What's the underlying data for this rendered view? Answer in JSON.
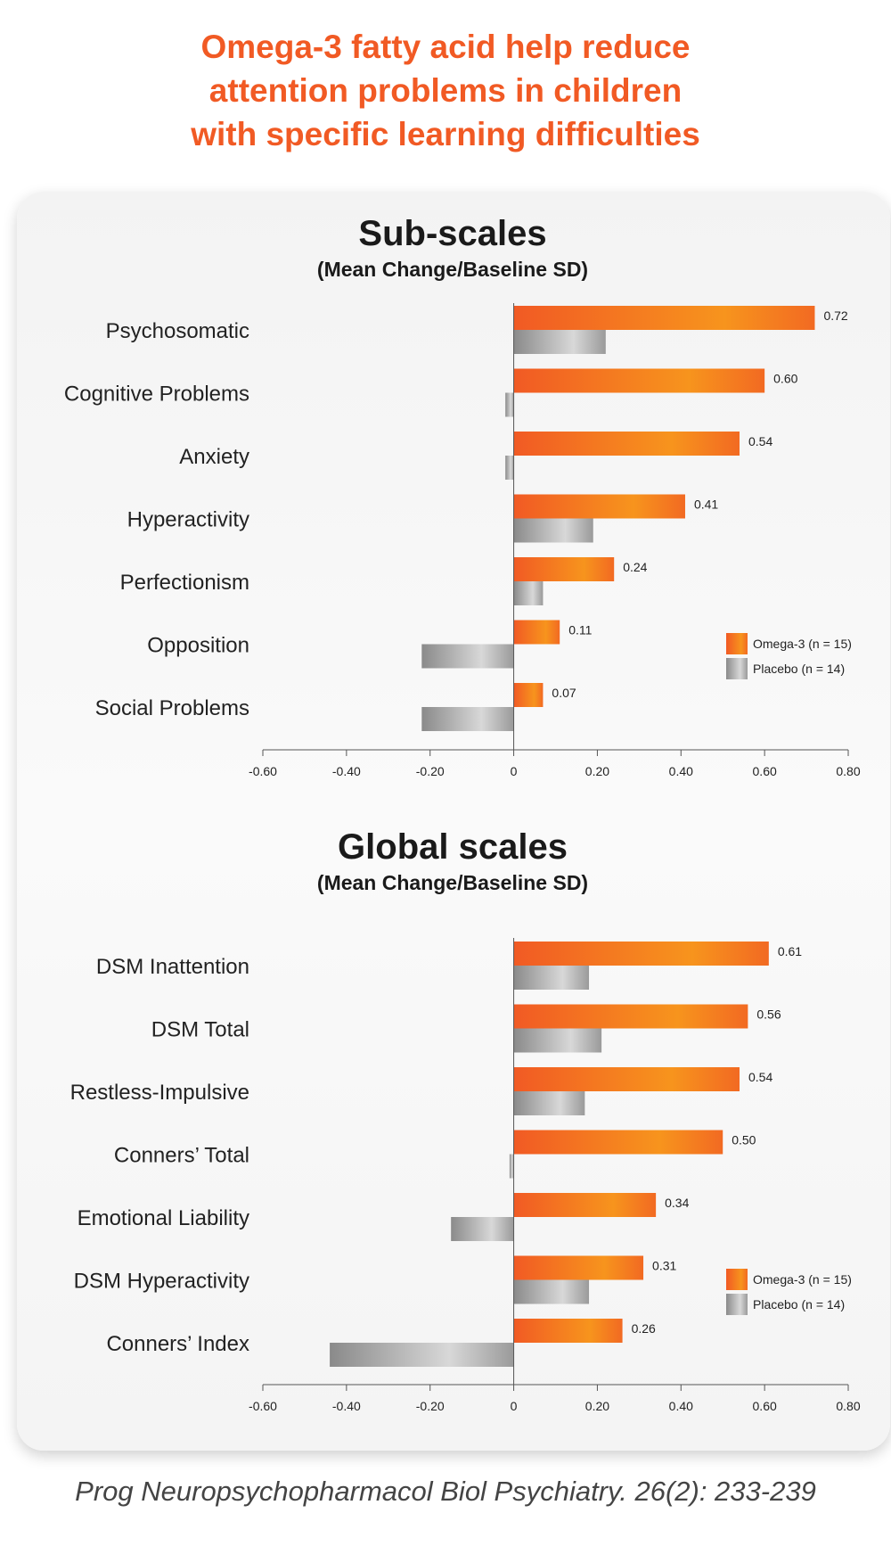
{
  "title_lines": [
    "Omega-3 fatty acid help reduce",
    "attention problems in children",
    "with specific learning difficulties"
  ],
  "citation": "Prog Neuropsychopharmacol Biol Psychiatry. 26(2): 233-239",
  "colors": {
    "omega": "#f15a24",
    "omega_light": "#f7941d",
    "placebo": "#8a8a8a",
    "placebo_light": "#d8d8d8",
    "title": "#f15a24"
  },
  "chart_data": [
    {
      "type": "bar",
      "orientation": "horizontal",
      "title": "Sub-scales",
      "subtitle": "(Mean Change/Baseline SD)",
      "categories": [
        "Psychosomatic",
        "Cognitive Problems",
        "Anxiety",
        "Hyperactivity",
        "Perfectionism",
        "Opposition",
        "Social Problems"
      ],
      "series": [
        {
          "name": "Omega-3 (n = 15)",
          "values": [
            0.72,
            0.6,
            0.54,
            0.41,
            0.24,
            0.11,
            0.07
          ]
        },
        {
          "name": "Placebo (n = 14)",
          "values": [
            0.22,
            -0.02,
            -0.02,
            0.19,
            0.07,
            -0.22,
            -0.22
          ]
        }
      ],
      "data_labels": [
        "0.72",
        "0.60",
        "0.54",
        "0.41",
        "0.24",
        "0.11",
        "0.07"
      ],
      "xlim": [
        -0.6,
        0.8
      ],
      "xticks": [
        -0.6,
        -0.4,
        -0.2,
        0,
        0.2,
        0.4,
        0.6,
        0.8
      ],
      "xtick_labels": [
        "-0.60",
        "-0.40",
        "-0.20",
        "0",
        "0.20",
        "0.40",
        "0.60",
        "0.80"
      ],
      "legend_position": "right",
      "grid": false
    },
    {
      "type": "bar",
      "orientation": "horizontal",
      "title": "Global scales",
      "subtitle": "(Mean Change/Baseline SD)",
      "categories": [
        "DSM Inattention",
        "DSM Total",
        "Restless-Impulsive",
        "Conners’ Total",
        "Emotional Liability",
        "DSM Hyperactivity",
        "Conners’ Index"
      ],
      "series": [
        {
          "name": "Omega-3 (n = 15)",
          "values": [
            0.61,
            0.56,
            0.54,
            0.5,
            0.34,
            0.31,
            0.26
          ]
        },
        {
          "name": "Placebo (n = 14)",
          "values": [
            0.18,
            0.21,
            0.17,
            -0.01,
            -0.15,
            0.18,
            -0.44
          ]
        }
      ],
      "data_labels": [
        "0.61",
        "0.56",
        "0.54",
        "0.50",
        "0.34",
        "0.31",
        "0.26"
      ],
      "xlim": [
        -0.6,
        0.8
      ],
      "xticks": [
        -0.6,
        -0.4,
        -0.2,
        0,
        0.2,
        0.4,
        0.6,
        0.8
      ],
      "xtick_labels": [
        "-0.60",
        "-0.40",
        "-0.20",
        "0",
        "0.20",
        "0.40",
        "0.60",
        "0.80"
      ],
      "legend_position": "right",
      "grid": false
    }
  ]
}
